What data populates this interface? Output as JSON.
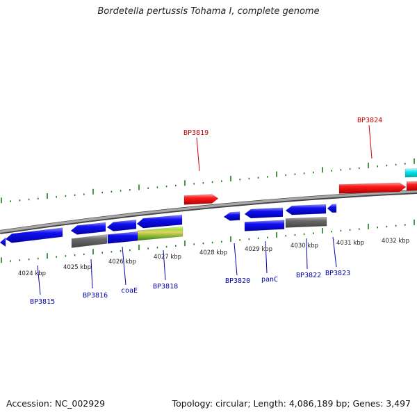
{
  "title": "Bordetella pertussis Tohama I, complete genome",
  "footer": {
    "accession_label": "Accession:",
    "accession": "NC_002929",
    "topology_label": "Topology:",
    "topology": "circular",
    "length_label": "Length:",
    "length": "4,086,189 bp",
    "genes_label": "Genes:",
    "genes": "3,497"
  },
  "colors": {
    "backbone": "#888888",
    "forward_cds": "#ee0000",
    "reverse_cds": "#0000ee",
    "pseudo": "#666666",
    "rna": "#00e5ee",
    "tick": "#1a7a1a",
    "forward_label": "#cc0000",
    "reverse_label": "#0000aa"
  },
  "scale": {
    "unit": "kbp",
    "labels": [
      "4024 kbp",
      "4025 kbp",
      "4026 kbp",
      "4027 kbp",
      "4028 kbp",
      "4029 kbp",
      "4030 kbp",
      "4031 kbp",
      "4032 kbp"
    ]
  },
  "genes": [
    {
      "name": "BP3815",
      "strand": "reverse"
    },
    {
      "name": "BP3816",
      "strand": "reverse"
    },
    {
      "name": "coaE",
      "strand": "reverse"
    },
    {
      "name": "BP3818",
      "strand": "reverse"
    },
    {
      "name": "BP3819",
      "strand": "forward"
    },
    {
      "name": "BP3820",
      "strand": "reverse"
    },
    {
      "name": "panC",
      "strand": "reverse"
    },
    {
      "name": "BP3822",
      "strand": "reverse"
    },
    {
      "name": "BP3823",
      "strand": "reverse"
    },
    {
      "name": "BP3824",
      "strand": "forward"
    }
  ]
}
